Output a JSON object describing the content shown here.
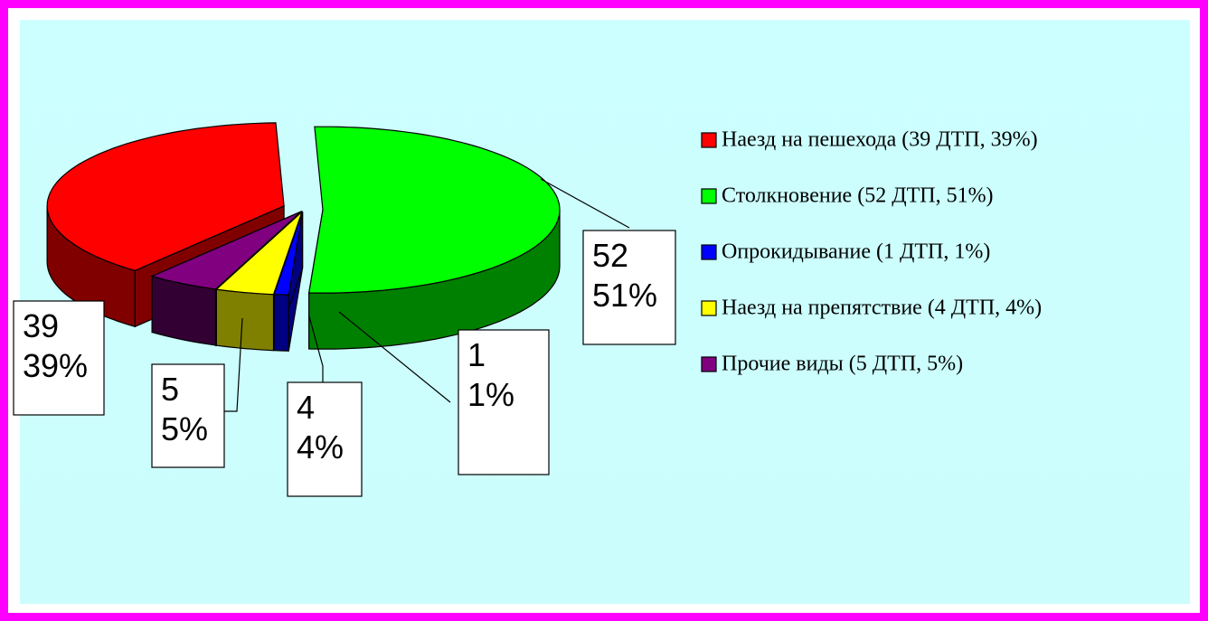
{
  "chart_data": {
    "type": "pie3d",
    "categories": [
      "Наезд на пешехода (39 ДТП, 39%)",
      "Столкновение (52 ДТП, 51%)",
      "Опрокидывание (1 ДТП, 1%)",
      "Наезд на препятствие (4 ДТП, 4%)",
      "Прочие виды (5 ДТП, 5%)"
    ],
    "values": [
      39,
      52,
      1,
      4,
      5
    ],
    "percentages": [
      39,
      51,
      1,
      4,
      5
    ],
    "percent_labels": [
      "39%",
      "51%",
      "1%",
      "4%",
      "5%"
    ],
    "colors": [
      "#ff0000",
      "#00ff00",
      "#0000ff",
      "#ffff00",
      "#800080"
    ],
    "side_colors": [
      "#800000",
      "#008000",
      "#000080",
      "#808000",
      "#330033"
    ],
    "legend": "right"
  }
}
